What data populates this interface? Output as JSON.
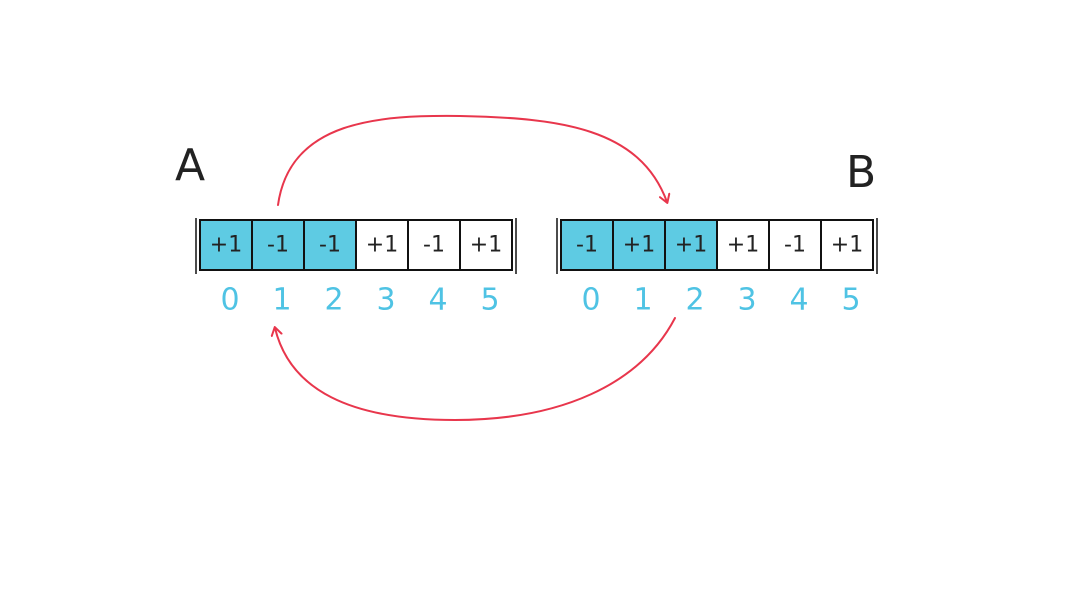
{
  "colors": {
    "highlight": "#5ecbe3",
    "plain": "#ffffff",
    "stroke": "#111111",
    "index": "#4fc3e4",
    "arrow": "#e8364c"
  },
  "arrays": [
    {
      "label": "A",
      "cells": [
        {
          "text": "+1",
          "highlighted": true
        },
        {
          "text": "-1",
          "highlighted": true
        },
        {
          "text": "-1",
          "highlighted": true
        },
        {
          "text": "+1",
          "highlighted": false
        },
        {
          "text": "-1",
          "highlighted": false
        },
        {
          "text": "+1",
          "highlighted": false
        }
      ],
      "indices": [
        "0",
        "1",
        "2",
        "3",
        "4",
        "5"
      ]
    },
    {
      "label": "B",
      "cells": [
        {
          "text": "-1",
          "highlighted": true
        },
        {
          "text": "+1",
          "highlighted": true
        },
        {
          "text": "+1",
          "highlighted": true
        },
        {
          "text": "+1",
          "highlighted": false
        },
        {
          "text": "-1",
          "highlighted": false
        },
        {
          "text": "+1",
          "highlighted": false
        }
      ],
      "indices": [
        "0",
        "1",
        "2",
        "3",
        "4",
        "5"
      ]
    }
  ],
  "arrows": [
    {
      "from": "A[1]",
      "to": "B[2]"
    },
    {
      "from": "B[2]",
      "to": "A[1]"
    }
  ]
}
